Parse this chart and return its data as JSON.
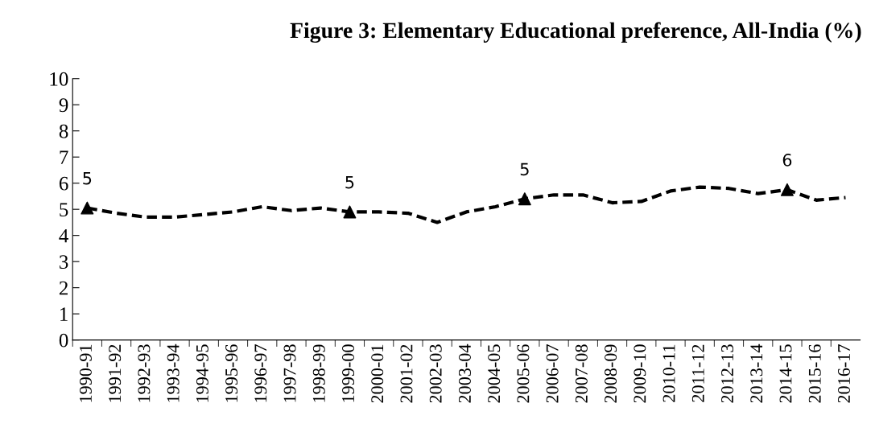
{
  "chart_data": {
    "type": "line",
    "title": "Figure 3: Elementary Educational preference, All-India (%)",
    "categories": [
      "1990-91",
      "1991-92",
      "1992-93",
      "1993-94",
      "1994-95",
      "1995-96",
      "1996-97",
      "1997-98",
      "1998-99",
      "1999-00",
      "2000-01",
      "2001-02",
      "2002-03",
      "2003-04",
      "2004-05",
      "2005-06",
      "2006-07",
      "2007-08",
      "2008-09",
      "2009-10",
      "2010-11",
      "2011-12",
      "2012-13",
      "2013-14",
      "2014-15",
      "2015-16",
      "2016-17"
    ],
    "series": [
      {
        "color": "#000000",
        "line_style": "dashed",
        "marker": "none",
        "values": [
          5.05,
          4.85,
          4.7,
          4.7,
          4.8,
          4.9,
          5.1,
          4.95,
          5.05,
          4.9,
          4.9,
          4.85,
          4.5,
          4.9,
          5.1,
          5.4,
          5.55,
          5.55,
          5.25,
          5.3,
          5.7,
          5.85,
          5.8,
          5.6,
          5.75,
          5.35,
          5.45
        ],
        "value_labels": [
          "5",
          null,
          null,
          null,
          null,
          null,
          null,
          null,
          null,
          "5",
          null,
          null,
          null,
          null,
          null,
          "5",
          null,
          null,
          null,
          null,
          null,
          null,
          null,
          null,
          "6",
          null,
          null
        ]
      },
      {
        "type": "scatter",
        "color": "#000000",
        "marker": "triangle",
        "values": [
          5.05,
          null,
          null,
          null,
          null,
          null,
          null,
          null,
          null,
          4.9,
          null,
          null,
          null,
          null,
          null,
          5.4,
          null,
          null,
          null,
          null,
          null,
          null,
          null,
          null,
          5.75,
          null,
          null
        ]
      }
    ],
    "ylim": [
      0,
      10
    ],
    "yticks": [
      0,
      1,
      2,
      3,
      4,
      5,
      6,
      7,
      8,
      9,
      10
    ],
    "grid": false,
    "legend": false
  }
}
